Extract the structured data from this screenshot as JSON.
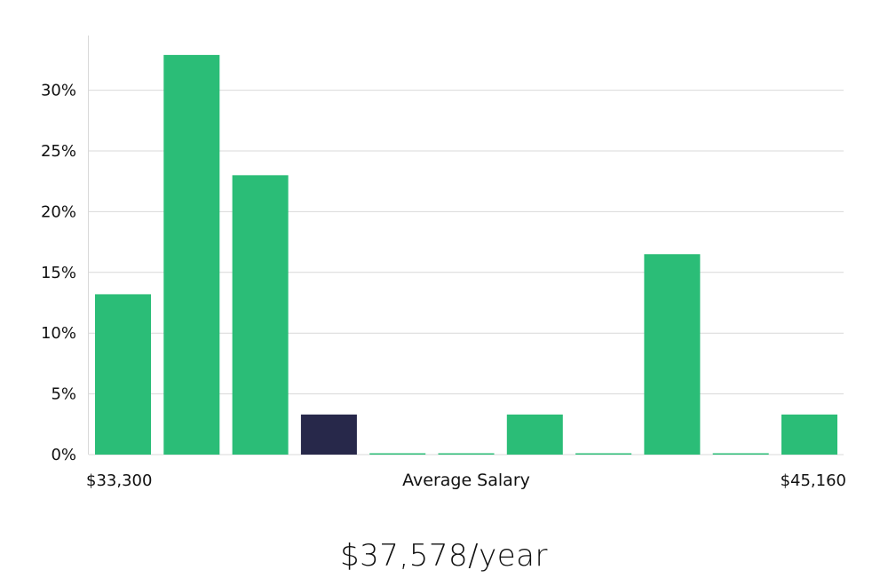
{
  "chart_data": {
    "type": "bar",
    "values": [
      13.2,
      32.9,
      23.0,
      3.3,
      0,
      0,
      3.3,
      0,
      16.5,
      0,
      3.3
    ],
    "highlight_index": 3,
    "y_ticks": [
      "0%",
      "5%",
      "10%",
      "15%",
      "20%",
      "25%",
      "30%"
    ],
    "ylim": [
      0,
      34.5
    ],
    "grid": true,
    "x_min_label": "$33,300",
    "x_max_label": "$45,160",
    "xlabel": "Average Salary",
    "colors": {
      "bar": "#2bbd77",
      "highlight": "#27284a",
      "grid": "#d9d9d9"
    }
  },
  "summary": {
    "salary": "$37,578/year"
  }
}
